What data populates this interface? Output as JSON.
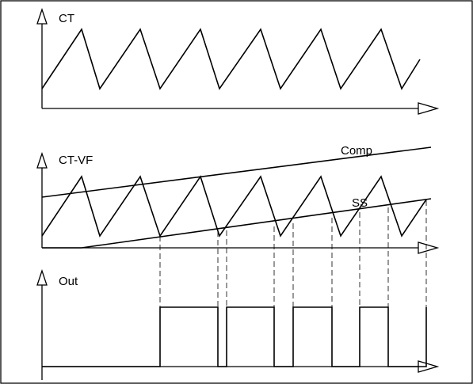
{
  "labels": {
    "ct": "CT",
    "ct_vf": "CT-VF",
    "comp": "Comp",
    "ss": "SS",
    "out": "Out"
  }
}
